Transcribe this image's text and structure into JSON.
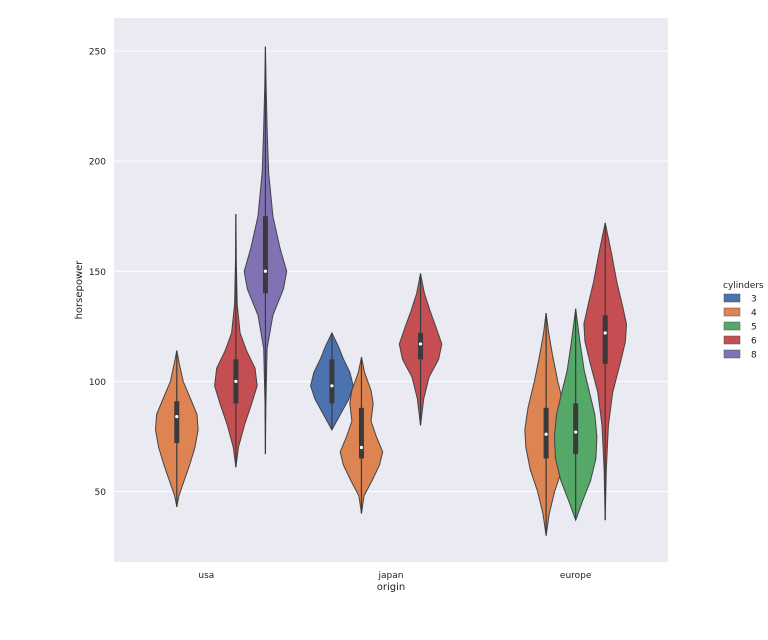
{
  "chart_data": {
    "type": "violin",
    "title": "",
    "xlabel": "origin",
    "ylabel": "horsepower",
    "categories": [
      "usa",
      "japan",
      "europe"
    ],
    "yticks": [
      50,
      100,
      150,
      200,
      250
    ],
    "ylim": [
      18,
      265
    ],
    "grid": true,
    "legend": {
      "title": "cylinders",
      "position": "right"
    },
    "series": [
      {
        "name": "3",
        "color": "#4c72b0"
      },
      {
        "name": "4",
        "color": "#dd8452"
      },
      {
        "name": "5",
        "color": "#55a868"
      },
      {
        "name": "6",
        "color": "#c44e52"
      },
      {
        "name": "8",
        "color": "#8172b3"
      }
    ],
    "violins": [
      {
        "category": "usa",
        "series": "4",
        "min": 43,
        "max": 114,
        "q1": 72,
        "median": 84,
        "q3": 91,
        "profile": [
          [
            43,
            0
          ],
          [
            48,
            0.1
          ],
          [
            55,
            0.35
          ],
          [
            62,
            0.6
          ],
          [
            70,
            0.85
          ],
          [
            78,
            1.0
          ],
          [
            85,
            0.95
          ],
          [
            92,
            0.65
          ],
          [
            100,
            0.3
          ],
          [
            108,
            0.12
          ],
          [
            114,
            0
          ]
        ]
      },
      {
        "category": "usa",
        "series": "6",
        "min": 61,
        "max": 176,
        "q1": 90,
        "median": 100,
        "q3": 110,
        "profile": [
          [
            61,
            0
          ],
          [
            70,
            0.12
          ],
          [
            80,
            0.4
          ],
          [
            90,
            0.75
          ],
          [
            98,
            1.0
          ],
          [
            106,
            0.9
          ],
          [
            114,
            0.5
          ],
          [
            122,
            0.2
          ],
          [
            135,
            0.06
          ],
          [
            155,
            0.02
          ],
          [
            176,
            0
          ]
        ]
      },
      {
        "category": "usa",
        "series": "8",
        "min": 67,
        "max": 252,
        "q1": 140,
        "median": 150,
        "q3": 175,
        "profile": [
          [
            67,
            0
          ],
          [
            90,
            0.02
          ],
          [
            115,
            0.08
          ],
          [
            130,
            0.35
          ],
          [
            142,
            0.85
          ],
          [
            150,
            1.0
          ],
          [
            160,
            0.7
          ],
          [
            175,
            0.35
          ],
          [
            195,
            0.15
          ],
          [
            215,
            0.08
          ],
          [
            235,
            0.03
          ],
          [
            252,
            0
          ]
        ]
      },
      {
        "category": "japan",
        "series": "3",
        "min": 78,
        "max": 122,
        "q1": 90,
        "median": 98,
        "q3": 110,
        "profile": [
          [
            78,
            0
          ],
          [
            85,
            0.4
          ],
          [
            92,
            0.8
          ],
          [
            98,
            1.0
          ],
          [
            104,
            0.85
          ],
          [
            110,
            0.55
          ],
          [
            116,
            0.3
          ],
          [
            122,
            0
          ]
        ]
      },
      {
        "category": "japan",
        "series": "4",
        "min": 40,
        "max": 111,
        "q1": 65,
        "median": 70,
        "q3": 88,
        "profile": [
          [
            40,
            0
          ],
          [
            48,
            0.12
          ],
          [
            55,
            0.5
          ],
          [
            62,
            0.85
          ],
          [
            68,
            1.0
          ],
          [
            75,
            0.7
          ],
          [
            82,
            0.45
          ],
          [
            90,
            0.55
          ],
          [
            96,
            0.45
          ],
          [
            104,
            0.15
          ],
          [
            111,
            0
          ]
        ]
      },
      {
        "category": "japan",
        "series": "6",
        "min": 80,
        "max": 149,
        "q1": 110,
        "median": 117,
        "q3": 122,
        "profile": [
          [
            80,
            0
          ],
          [
            92,
            0.15
          ],
          [
            102,
            0.4
          ],
          [
            110,
            0.85
          ],
          [
            117,
            1.0
          ],
          [
            124,
            0.75
          ],
          [
            132,
            0.45
          ],
          [
            140,
            0.18
          ],
          [
            149,
            0
          ]
        ]
      },
      {
        "category": "europe",
        "series": "4",
        "min": 30,
        "max": 131,
        "q1": 65,
        "median": 76,
        "q3": 88,
        "profile": [
          [
            30,
            0
          ],
          [
            40,
            0.15
          ],
          [
            50,
            0.4
          ],
          [
            60,
            0.75
          ],
          [
            70,
            0.95
          ],
          [
            78,
            1.0
          ],
          [
            88,
            0.85
          ],
          [
            100,
            0.55
          ],
          [
            112,
            0.3
          ],
          [
            122,
            0.12
          ],
          [
            131,
            0
          ]
        ]
      },
      {
        "category": "europe",
        "series": "5",
        "min": 37,
        "max": 133,
        "q1": 67,
        "median": 77,
        "q3": 90,
        "profile": [
          [
            37,
            0
          ],
          [
            45,
            0.3
          ],
          [
            55,
            0.7
          ],
          [
            65,
            0.95
          ],
          [
            75,
            1.0
          ],
          [
            85,
            0.9
          ],
          [
            95,
            0.65
          ],
          [
            105,
            0.4
          ],
          [
            118,
            0.2
          ],
          [
            133,
            0
          ]
        ]
      },
      {
        "category": "europe",
        "series": "6",
        "min": 37,
        "max": 172,
        "q1": 108,
        "median": 122,
        "q3": 130,
        "profile": [
          [
            37,
            0
          ],
          [
            60,
            0.05
          ],
          [
            80,
            0.15
          ],
          [
            95,
            0.35
          ],
          [
            108,
            0.7
          ],
          [
            118,
            0.95
          ],
          [
            126,
            1.0
          ],
          [
            135,
            0.8
          ],
          [
            145,
            0.55
          ],
          [
            158,
            0.3
          ],
          [
            172,
            0
          ]
        ]
      }
    ]
  }
}
